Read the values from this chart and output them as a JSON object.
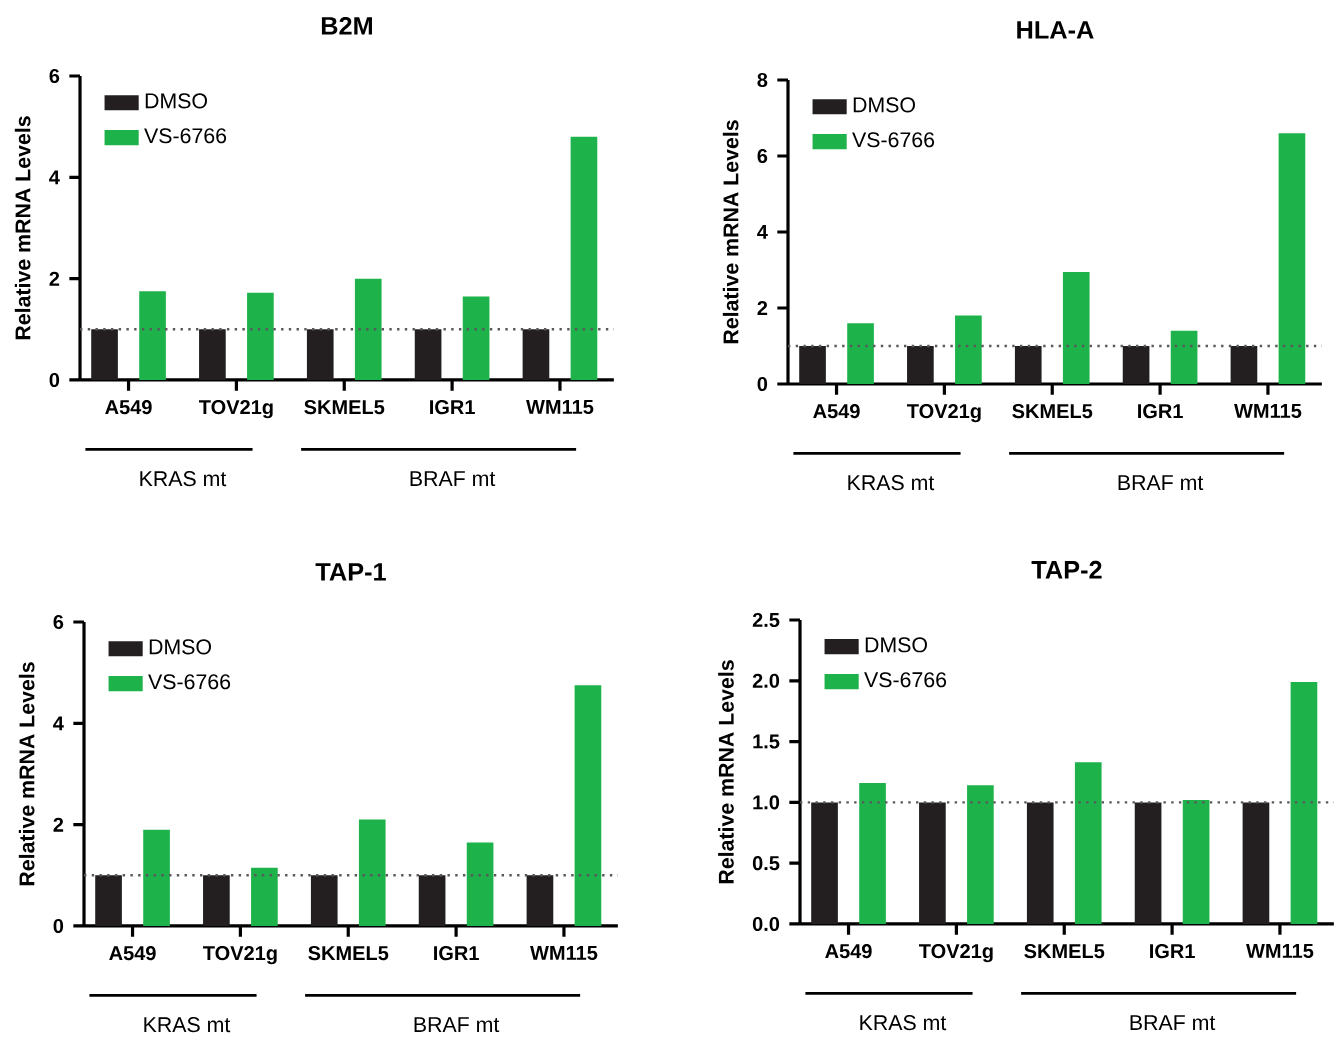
{
  "chart_data": [
    {
      "type": "bar",
      "title": "B2M",
      "ylabel": "Relative mRNA Levels",
      "categories": [
        "A549",
        "TOV21g",
        "SKMEL5",
        "IGR1",
        "WM115"
      ],
      "series": [
        {
          "name": "DMSO",
          "color": "#231f20",
          "values": [
            1,
            1,
            1,
            1,
            1
          ]
        },
        {
          "name": "VS-6766",
          "color": "#1db34a",
          "values": [
            1.75,
            1.72,
            2.0,
            1.65,
            4.8
          ]
        }
      ],
      "ylim": [
        0,
        6
      ],
      "yticks": [
        0,
        2,
        4,
        6
      ],
      "legend": "top left",
      "ref_lines": [
        {
          "axis": "y",
          "value": 1,
          "line_style": "dotted"
        }
      ],
      "annotations": [
        "KRAS mt",
        "BRAF mt"
      ]
    },
    {
      "type": "bar",
      "title": "HLA-A",
      "ylabel": "Relative mRNA Levels",
      "categories": [
        "A549",
        "TOV21g",
        "SKMEL5",
        "IGR1",
        "WM115"
      ],
      "series": [
        {
          "name": "DMSO",
          "color": "#231f20",
          "values": [
            1,
            1,
            1,
            1,
            1
          ]
        },
        {
          "name": "VS-6766",
          "color": "#1db34a",
          "values": [
            1.6,
            1.8,
            2.95,
            1.4,
            6.6
          ]
        }
      ],
      "ylim": [
        0,
        8
      ],
      "yticks": [
        0,
        2,
        4,
        6,
        8
      ],
      "legend": "top left",
      "ref_lines": [
        {
          "axis": "y",
          "value": 1,
          "line_style": "dotted"
        }
      ],
      "annotations": [
        "KRAS mt",
        "BRAF mt"
      ]
    },
    {
      "type": "bar",
      "title": "TAP-1",
      "ylabel": "Relative mRNA Levels",
      "categories": [
        "A549",
        "TOV21g",
        "SKMEL5",
        "IGR1",
        "WM115"
      ],
      "series": [
        {
          "name": "DMSO",
          "color": "#231f20",
          "values": [
            1,
            1,
            1,
            1,
            1
          ]
        },
        {
          "name": "VS-6766",
          "color": "#1db34a",
          "values": [
            1.9,
            1.15,
            2.1,
            1.65,
            4.75
          ]
        }
      ],
      "ylim": [
        0,
        6
      ],
      "yticks": [
        0,
        2,
        4,
        6
      ],
      "legend": "top left",
      "ref_lines": [
        {
          "axis": "y",
          "value": 1,
          "line_style": "dotted"
        }
      ],
      "annotations": [
        "KRAS mt",
        "BRAF mt"
      ]
    },
    {
      "type": "bar",
      "title": "TAP-2",
      "ylabel": "Relative mRNA Levels",
      "categories": [
        "A549",
        "TOV21g",
        "SKMEL5",
        "IGR1",
        "WM115"
      ],
      "series": [
        {
          "name": "DMSO",
          "color": "#231f20",
          "values": [
            1,
            1,
            1,
            1,
            1
          ]
        },
        {
          "name": "VS-6766",
          "color": "#1db34a",
          "values": [
            1.16,
            1.14,
            1.33,
            1.02,
            1.99
          ]
        }
      ],
      "ylim": [
        0,
        2.5
      ],
      "yticks": [
        {
          "value": 0,
          "label": "0.0"
        },
        {
          "value": 0.5,
          "label": "0.5"
        },
        {
          "value": 1,
          "label": "1.0"
        },
        {
          "value": 1.5,
          "label": "1.5"
        },
        {
          "value": 2,
          "label": "2.0"
        },
        {
          "value": 2.5,
          "label": "2.5"
        }
      ],
      "legend": "top left",
      "ref_lines": [
        {
          "axis": "y",
          "value": 1,
          "line_style": "dotted"
        }
      ],
      "annotations": [
        "KRAS mt",
        "BRAF mt"
      ]
    }
  ]
}
